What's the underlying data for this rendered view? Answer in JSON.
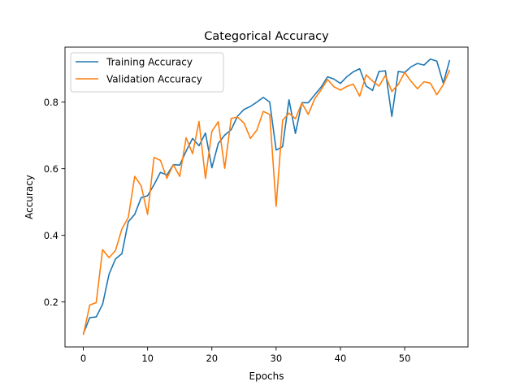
{
  "chart_data": {
    "type": "line",
    "title": "Categorical Accuracy",
    "xlabel": "Epochs",
    "ylabel": "Accuracy",
    "xlim": [
      -2.85,
      59.85
    ],
    "ylim": [
      0.065,
      0.965
    ],
    "xticks": [
      0,
      10,
      20,
      30,
      40,
      50
    ],
    "yticks": [
      0.2,
      0.4,
      0.6,
      0.8
    ],
    "grid": false,
    "legend_position": "upper-left",
    "x": [
      0,
      1,
      2,
      3,
      4,
      5,
      6,
      7,
      8,
      9,
      10,
      11,
      12,
      13,
      14,
      15,
      16,
      17,
      18,
      19,
      20,
      21,
      22,
      23,
      24,
      25,
      26,
      27,
      28,
      29,
      30,
      31,
      32,
      33,
      34,
      35,
      36,
      37,
      38,
      39,
      40,
      41,
      42,
      43,
      44,
      45,
      46,
      47,
      48,
      49,
      50,
      51,
      52,
      53,
      54,
      55,
      56,
      57
    ],
    "series": [
      {
        "name": "Training Accuracy",
        "color": "#1f77b4",
        "values": [
          0.105,
          0.153,
          0.155,
          0.193,
          0.283,
          0.329,
          0.345,
          0.441,
          0.463,
          0.513,
          0.519,
          0.552,
          0.589,
          0.581,
          0.612,
          0.611,
          0.653,
          0.691,
          0.669,
          0.707,
          0.603,
          0.676,
          0.701,
          0.717,
          0.758,
          0.778,
          0.787,
          0.8,
          0.814,
          0.8,
          0.656,
          0.666,
          0.807,
          0.706,
          0.798,
          0.798,
          0.822,
          0.845,
          0.876,
          0.869,
          0.856,
          0.876,
          0.891,
          0.9,
          0.848,
          0.835,
          0.892,
          0.894,
          0.757,
          0.892,
          0.889,
          0.906,
          0.916,
          0.911,
          0.929,
          0.923,
          0.857,
          0.926
        ]
      },
      {
        "name": "Validation Accuracy",
        "color": "#ff7f0e",
        "values": [
          0.101,
          0.191,
          0.198,
          0.357,
          0.333,
          0.354,
          0.419,
          0.454,
          0.577,
          0.549,
          0.463,
          0.634,
          0.625,
          0.571,
          0.612,
          0.577,
          0.693,
          0.645,
          0.742,
          0.571,
          0.712,
          0.741,
          0.601,
          0.751,
          0.755,
          0.737,
          0.691,
          0.716,
          0.772,
          0.763,
          0.487,
          0.745,
          0.767,
          0.75,
          0.797,
          0.763,
          0.81,
          0.837,
          0.868,
          0.846,
          0.836,
          0.847,
          0.854,
          0.818,
          0.882,
          0.863,
          0.848,
          0.88,
          0.832,
          0.853,
          0.889,
          0.862,
          0.84,
          0.861,
          0.857,
          0.822,
          0.852,
          0.897
        ]
      }
    ]
  }
}
